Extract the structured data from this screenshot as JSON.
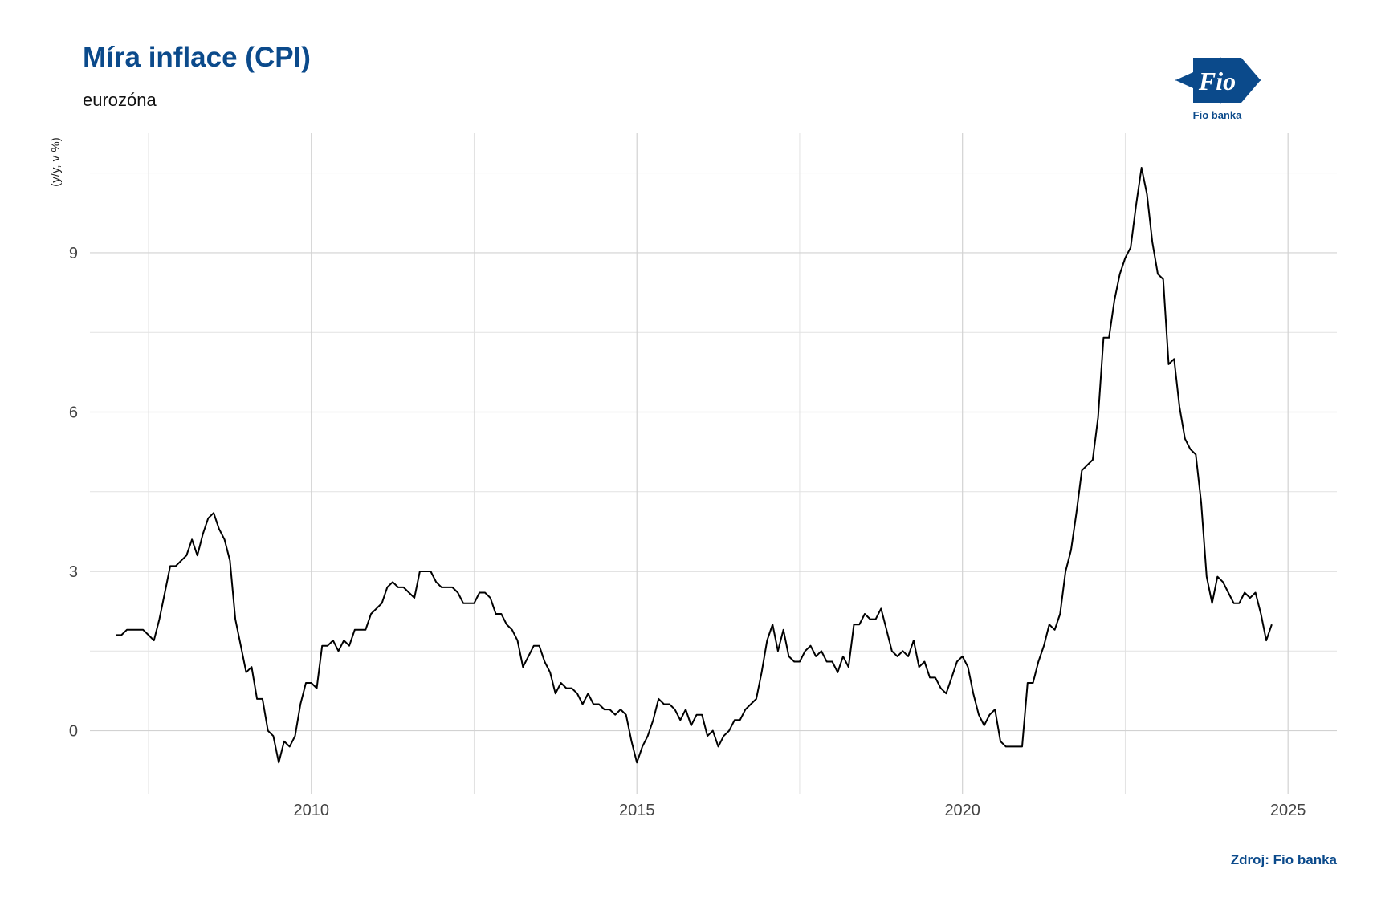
{
  "chart_data": {
    "type": "line",
    "title": "Míra inflace (CPI)",
    "subtitle": "eurozóna",
    "ylabel": "(y/y, v %)",
    "xlabel": "",
    "source": "Zdroj: Fio banka",
    "logo_text": "Fio",
    "logo_caption": "Fio banka",
    "grid": true,
    "xlim": [
      2006.6,
      2025.75
    ],
    "ylim": [
      -1.2,
      11.25
    ],
    "x_ticks": [
      2010,
      2015,
      2020,
      2025
    ],
    "y_ticks": [
      0,
      3,
      6,
      9
    ],
    "line_color": "#000000",
    "accent_color": "#0b4a8b",
    "start": "2007-01",
    "series": [
      {
        "frequency": "monthly",
        "values": [
          1.8,
          1.8,
          1.9,
          1.9,
          1.9,
          1.9,
          1.8,
          1.7,
          2.1,
          2.6,
          3.1,
          3.1,
          3.2,
          3.3,
          3.6,
          3.3,
          3.7,
          4.0,
          4.1,
          3.8,
          3.6,
          3.2,
          2.1,
          1.6,
          1.1,
          1.2,
          0.6,
          0.6,
          0.0,
          -0.1,
          -0.6,
          -0.2,
          -0.3,
          -0.1,
          0.5,
          0.9,
          0.9,
          0.8,
          1.6,
          1.6,
          1.7,
          1.5,
          1.7,
          1.6,
          1.9,
          1.9,
          1.9,
          2.2,
          2.3,
          2.4,
          2.7,
          2.8,
          2.7,
          2.7,
          2.6,
          2.5,
          3.0,
          3.0,
          3.0,
          2.8,
          2.7,
          2.7,
          2.7,
          2.6,
          2.4,
          2.4,
          2.4,
          2.6,
          2.6,
          2.5,
          2.2,
          2.2,
          2.0,
          1.9,
          1.7,
          1.2,
          1.4,
          1.6,
          1.6,
          1.3,
          1.1,
          0.7,
          0.9,
          0.8,
          0.8,
          0.7,
          0.5,
          0.7,
          0.5,
          0.5,
          0.4,
          0.4,
          0.3,
          0.4,
          0.3,
          -0.2,
          -0.6,
          -0.3,
          -0.1,
          0.2,
          0.6,
          0.5,
          0.5,
          0.4,
          0.2,
          0.4,
          0.1,
          0.3,
          0.3,
          -0.1,
          0.0,
          -0.3,
          -0.1,
          0.0,
          0.2,
          0.2,
          0.4,
          0.5,
          0.6,
          1.1,
          1.7,
          2.0,
          1.5,
          1.9,
          1.4,
          1.3,
          1.3,
          1.5,
          1.6,
          1.4,
          1.5,
          1.3,
          1.3,
          1.1,
          1.4,
          1.2,
          2.0,
          2.0,
          2.2,
          2.1,
          2.1,
          2.3,
          1.9,
          1.5,
          1.4,
          1.5,
          1.4,
          1.7,
          1.2,
          1.3,
          1.0,
          1.0,
          0.8,
          0.7,
          1.0,
          1.3,
          1.4,
          1.2,
          0.7,
          0.3,
          0.1,
          0.3,
          0.4,
          -0.2,
          -0.3,
          -0.3,
          -0.3,
          -0.3,
          0.9,
          0.9,
          1.3,
          1.6,
          2.0,
          1.9,
          2.2,
          3.0,
          3.4,
          4.1,
          4.9,
          5.0,
          5.1,
          5.9,
          7.4,
          7.4,
          8.1,
          8.6,
          8.9,
          9.1,
          9.9,
          10.6,
          10.1,
          9.2,
          8.6,
          8.5,
          6.9,
          7.0,
          6.1,
          5.5,
          5.3,
          5.2,
          4.3,
          2.9,
          2.4,
          2.9,
          2.8,
          2.6,
          2.4,
          2.4,
          2.6,
          2.5,
          2.6,
          2.2,
          1.7,
          2.0
        ]
      }
    ]
  }
}
